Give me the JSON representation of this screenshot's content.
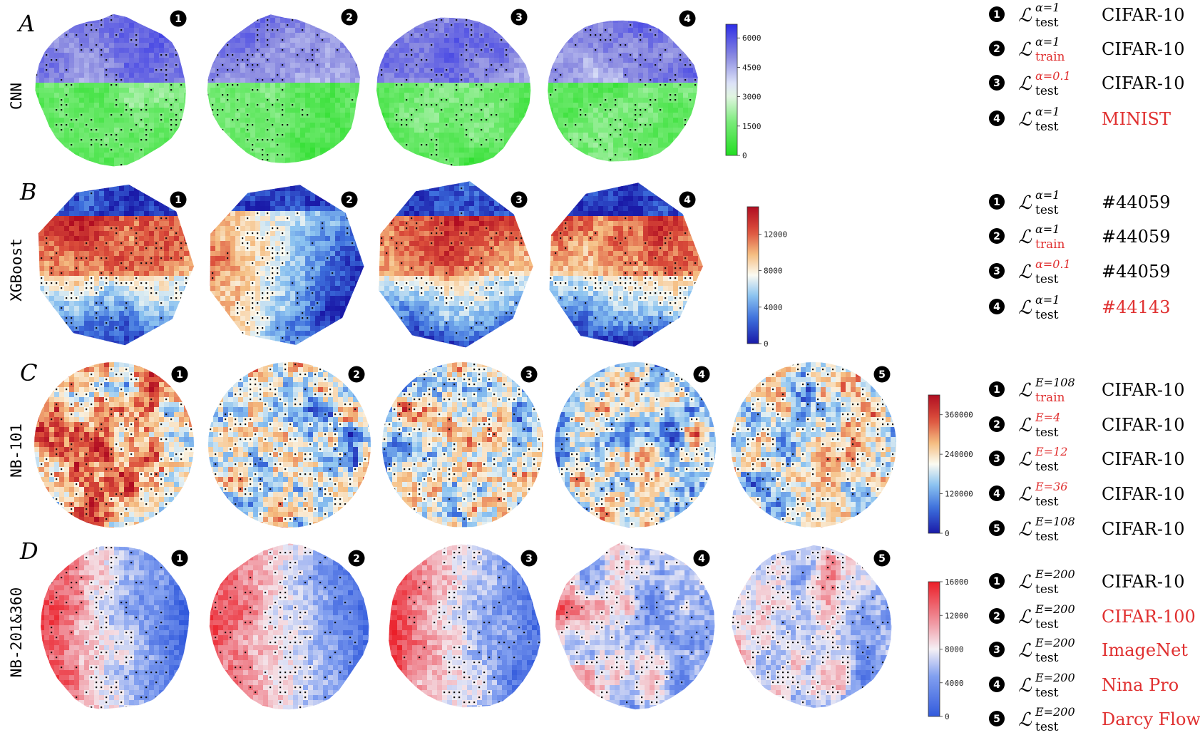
{
  "colors": {
    "black": "#000000",
    "highlight_red": "#e03030",
    "green_low": "#22dd22",
    "blue_high": "#2d2de6",
    "blue_low": "#1a1aa8",
    "red_high": "#b00d22",
    "white_mid": "#fbfbf2"
  },
  "rows": [
    {
      "letter": "A",
      "label": "CNN",
      "colormap": "green-blue",
      "panels": [
        1,
        2,
        3,
        4
      ],
      "colorbar": {
        "max": 6700,
        "ticks": [
          "0",
          "1500",
          "3000",
          "4500",
          "6000"
        ],
        "tick_values": [
          0,
          1500,
          3000,
          4500,
          6000
        ]
      },
      "legend": [
        {
          "num": "1",
          "sup": "α=1",
          "sup_red": false,
          "sub": "test",
          "sub_red": false,
          "ds": "CIFAR-10",
          "ds_red": false
        },
        {
          "num": "2",
          "sup": "α=1",
          "sup_red": false,
          "sub": "train",
          "sub_red": true,
          "ds": "CIFAR-10",
          "ds_red": false
        },
        {
          "num": "3",
          "sup": "α=0.1",
          "sup_red": true,
          "sub": "test",
          "sub_red": false,
          "ds": "CIFAR-10",
          "ds_red": false
        },
        {
          "num": "4",
          "sup": "α=1",
          "sup_red": false,
          "sub": "test",
          "sub_red": false,
          "ds": "MINIST",
          "ds_red": true
        }
      ]
    },
    {
      "letter": "B",
      "label": "XGBoost",
      "colormap": "coolwarm",
      "panels": [
        1,
        2,
        3,
        4
      ],
      "colorbar": {
        "max": 15000,
        "ticks": [
          "0",
          "4000",
          "8000",
          "12000"
        ],
        "tick_values": [
          0,
          4000,
          8000,
          12000
        ]
      },
      "legend": [
        {
          "num": "1",
          "sup": "α=1",
          "sup_red": false,
          "sub": "test",
          "sub_red": false,
          "ds": "#44059",
          "ds_red": false
        },
        {
          "num": "2",
          "sup": "α=1",
          "sup_red": false,
          "sub": "train",
          "sub_red": true,
          "ds": "#44059",
          "ds_red": false
        },
        {
          "num": "3",
          "sup": "α=0.1",
          "sup_red": true,
          "sub": "test",
          "sub_red": false,
          "ds": "#44059",
          "ds_red": false
        },
        {
          "num": "4",
          "sup": "α=1",
          "sup_red": false,
          "sub": "test",
          "sub_red": false,
          "ds": "#44143",
          "ds_red": true
        }
      ]
    },
    {
      "letter": "C",
      "label": "NB-101",
      "colormap": "coolwarm",
      "panels": [
        1,
        2,
        3,
        4,
        5
      ],
      "colorbar": {
        "max": 420000,
        "ticks": [
          "0",
          "120000",
          "240000",
          "360000"
        ],
        "tick_values": [
          0,
          120000,
          240000,
          360000
        ]
      },
      "legend": [
        {
          "num": "1",
          "sup": "E=108",
          "sup_red": false,
          "sub": "train",
          "sub_red": true,
          "ds": "CIFAR-10",
          "ds_red": false
        },
        {
          "num": "2",
          "sup": "E=4",
          "sup_red": true,
          "sub": "test",
          "sub_red": false,
          "ds": "CIFAR-10",
          "ds_red": false
        },
        {
          "num": "3",
          "sup": "E=12",
          "sup_red": true,
          "sub": "test",
          "sub_red": false,
          "ds": "CIFAR-10",
          "ds_red": false
        },
        {
          "num": "4",
          "sup": "E=36",
          "sup_red": true,
          "sub": "test",
          "sub_red": false,
          "ds": "CIFAR-10",
          "ds_red": false
        },
        {
          "num": "5",
          "sup": "E=108",
          "sup_red": false,
          "sub": "test",
          "sub_red": false,
          "ds": "CIFAR-10",
          "ds_red": false
        }
      ]
    },
    {
      "letter": "D",
      "label": "NB-201&360",
      "colormap": "bwr",
      "panels": [
        1,
        2,
        3,
        4,
        5
      ],
      "colorbar": {
        "max": 16000,
        "ticks": [
          "0",
          "4000",
          "8000",
          "12000",
          "16000"
        ],
        "tick_values": [
          0,
          4000,
          8000,
          12000,
          16000
        ]
      },
      "legend": [
        {
          "num": "1",
          "sup": "E=200",
          "sup_red": false,
          "sub": "test",
          "sub_red": false,
          "ds": "CIFAR-10",
          "ds_red": false
        },
        {
          "num": "2",
          "sup": "E=200",
          "sup_red": false,
          "sub": "test",
          "sub_red": false,
          "ds": "CIFAR-100",
          "ds_red": true
        },
        {
          "num": "3",
          "sup": "E=200",
          "sup_red": false,
          "sub": "test",
          "sub_red": false,
          "ds": "ImageNet",
          "ds_red": true
        },
        {
          "num": "4",
          "sup": "E=200",
          "sup_red": false,
          "sub": "test",
          "sub_red": false,
          "ds": "Nina Pro",
          "ds_red": true
        },
        {
          "num": "5",
          "sup": "E=200",
          "sup_red": false,
          "sub": "test",
          "sub_red": false,
          "ds": "Darcy Flow",
          "ds_red": true
        }
      ]
    }
  ],
  "chart_data": [
    {
      "type": "heatmap",
      "title": "A",
      "ylabel": "CNN",
      "panels": 4,
      "colorbar_range": [
        0,
        6700
      ],
      "colorbar_ticks": [
        0,
        1500,
        3000,
        4500,
        6000
      ]
    },
    {
      "type": "heatmap",
      "title": "B",
      "ylabel": "XGBoost",
      "panels": 4,
      "colorbar_range": [
        0,
        15000
      ],
      "colorbar_ticks": [
        0,
        4000,
        8000,
        12000
      ]
    },
    {
      "type": "heatmap",
      "title": "C",
      "ylabel": "NB-101",
      "panels": 5,
      "colorbar_range": [
        0,
        420000
      ],
      "colorbar_ticks": [
        0,
        120000,
        240000,
        360000
      ]
    },
    {
      "type": "heatmap",
      "title": "D",
      "ylabel": "NB-201&360",
      "panels": 5,
      "colorbar_range": [
        0,
        16000
      ],
      "colorbar_ticks": [
        0,
        4000,
        8000,
        12000,
        16000
      ]
    }
  ]
}
